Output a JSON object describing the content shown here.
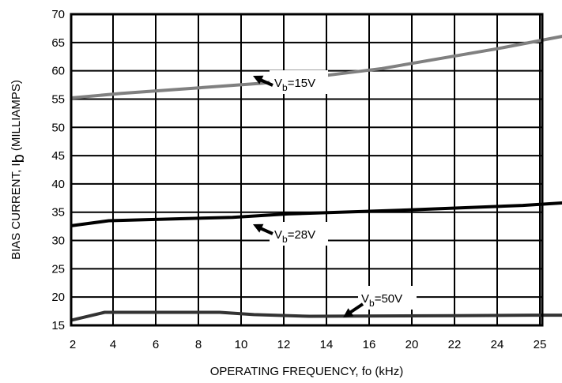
{
  "chart_data": {
    "type": "line",
    "xlabel": "OPERATING FREQUENCY, fo (kHz)",
    "ylabel": {
      "prefix": "BIAS CURRENT, I",
      "sub": "b",
      "suffix": " (MILLIAMPS)"
    },
    "x_ticks": [
      "2",
      "4",
      "6",
      "8",
      "10",
      "12",
      "14",
      "16",
      "20",
      "22",
      "24",
      "25"
    ],
    "y_ticks": [
      "15",
      "20",
      "25",
      "30",
      "35",
      "40",
      "45",
      "50",
      "55",
      "60",
      "65",
      "70"
    ],
    "ylim": [
      15,
      70
    ],
    "grid": true,
    "series": [
      {
        "color": "#808080",
        "points": [
          [
            0,
            55.2
          ],
          [
            1.2,
            56.0
          ],
          [
            4.5,
            57.8
          ],
          [
            7.3,
            60.4
          ],
          [
            10,
            63.9
          ],
          [
            11.6,
            66.2
          ],
          [
            12.8,
            68.2
          ],
          [
            13.8,
            69.8
          ]
        ]
      },
      {
        "color": "#000000",
        "points": [
          [
            0,
            32.6
          ],
          [
            0.9,
            33.5
          ],
          [
            3.8,
            34.1
          ],
          [
            5.1,
            34.7
          ],
          [
            7.9,
            35.4
          ],
          [
            10.6,
            36.2
          ],
          [
            12.3,
            37.0
          ],
          [
            14,
            38.0
          ]
        ]
      },
      {
        "color": "#333333",
        "points": [
          [
            0,
            15.9
          ],
          [
            0.8,
            17.3
          ],
          [
            3.5,
            17.3
          ],
          [
            4.3,
            16.9
          ],
          [
            5.6,
            16.6
          ],
          [
            9.0,
            16.7
          ],
          [
            10.8,
            16.8
          ],
          [
            14,
            16.8
          ]
        ]
      }
    ],
    "annotations": [
      {
        "prefix": "V",
        "sub": "b",
        "suffix": "=15V"
      },
      {
        "prefix": "V",
        "sub": "b",
        "suffix": "=28V"
      },
      {
        "prefix": "V",
        "sub": "b",
        "suffix": "=50V"
      }
    ]
  }
}
